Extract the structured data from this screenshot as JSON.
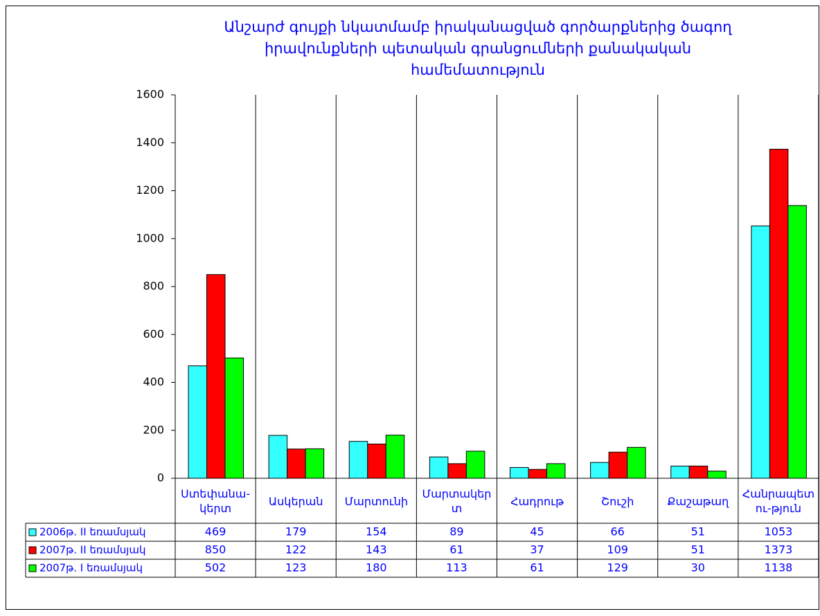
{
  "chart_data": {
    "type": "bar",
    "title": [
      "Անշարժ գույքի նկատմամբ իրականացված գործարքներից ծագող",
      "իրավունքների պետական գրանցումների քանակական",
      "համեմատություն"
    ],
    "categories": [
      "Ստեփանա-կերտ",
      "Ասկերան",
      "Մարտունի",
      "Մարտակերտ",
      "Հադրութ",
      "Շուշի",
      "Քաշաթաղ",
      "Հանրապետու-թյուն"
    ],
    "series": [
      {
        "name": "2006թ. II եռամսյակ",
        "color": "#33ffff",
        "values": [
          469,
          179,
          154,
          89,
          45,
          66,
          51,
          1053
        ]
      },
      {
        "name": "2007թ. II եռամսյակ",
        "color": "#ff0000",
        "values": [
          850,
          122,
          143,
          61,
          37,
          109,
          51,
          1373
        ]
      },
      {
        "name": "2007թ. I  եռամսյակ",
        "color": "#00ff00",
        "values": [
          502,
          123,
          180,
          113,
          61,
          129,
          30,
          1138
        ]
      }
    ],
    "ylim": [
      0,
      1600
    ],
    "yticks": [
      0,
      200,
      400,
      600,
      800,
      1000,
      1200,
      1400,
      1600
    ]
  }
}
